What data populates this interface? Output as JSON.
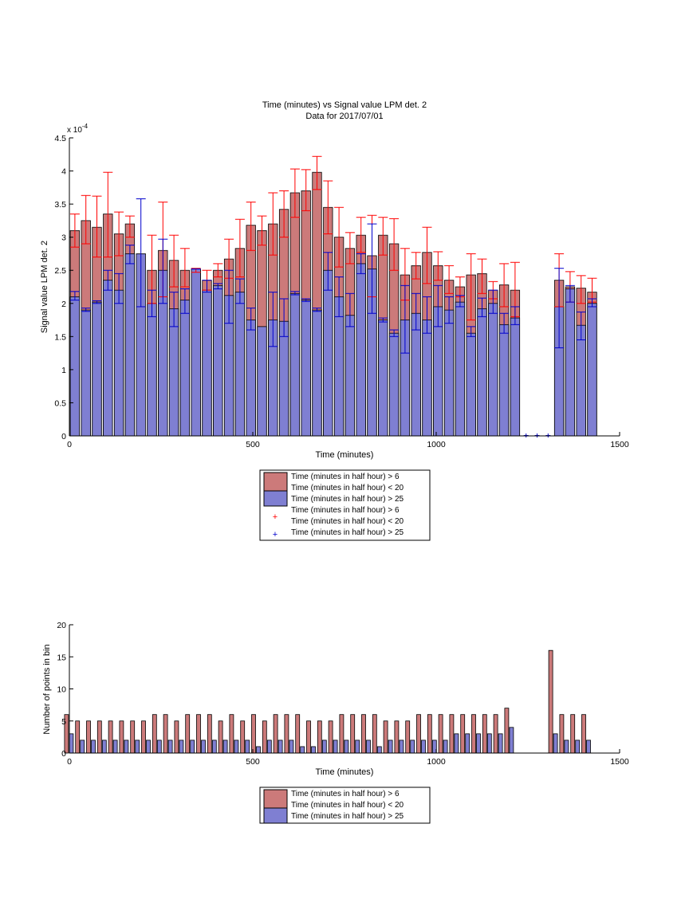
{
  "chart_data": [
    {
      "type": "bar",
      "title": "Time (minutes) vs Signal value LPM det. 2",
      "subtitle": "Data for 2017/07/01",
      "xlabel": "Time (minutes)",
      "ylabel": "Signal value LPM det. 2",
      "y_exponent_label": "x 10",
      "y_exponent_power": "-4",
      "xlim": [
        0,
        1500
      ],
      "ylim": [
        0,
        4.5
      ],
      "xticks": [
        "0",
        "500",
        "1000",
        "1500"
      ],
      "yticks": [
        "0",
        "0.5",
        "1",
        "1.5",
        "2",
        "2.5",
        "3",
        "3.5",
        "4",
        "4.5"
      ],
      "grid": false,
      "legend_position": "below",
      "legend": [
        "Time (minutes in half hour) > 6",
        "Time (minutes in half hour) < 20",
        "Time (minutes in half hour) > 25",
        "Time (minutes in half hour) > 6",
        "Time (minutes in half hour) < 20",
        "Time (minutes in half hour) > 25"
      ],
      "colors": {
        "red_series": "#cc7a7a",
        "blue_series": "#7f7fd2",
        "red_marker": "#ff0000",
        "blue_marker": "#0000cc"
      },
      "x": [
        15,
        45,
        75,
        105,
        135,
        165,
        195,
        225,
        255,
        285,
        315,
        345,
        375,
        405,
        435,
        465,
        495,
        525,
        555,
        585,
        615,
        645,
        675,
        705,
        735,
        765,
        795,
        825,
        855,
        885,
        915,
        945,
        975,
        1005,
        1035,
        1065,
        1095,
        1125,
        1155,
        1185,
        1215,
        1335,
        1365,
        1395,
        1425
      ],
      "series": [
        {
          "values": [
            3.1,
            3.25,
            3.15,
            3.35,
            3.05,
            3.2,
            null,
            2.5,
            2.8,
            2.65,
            2.5,
            2.5,
            2.35,
            2.5,
            2.67,
            2.83,
            3.18,
            3.1,
            3.2,
            3.42,
            3.67,
            3.7,
            3.98,
            3.45,
            3.0,
            2.83,
            3.03,
            2.72,
            3.03,
            2.9,
            2.43,
            2.57,
            2.77,
            2.57,
            2.35,
            2.25,
            2.43,
            2.45,
            2.2,
            2.28,
            2.2,
            2.35,
            2.25,
            2.23,
            2.17
          ],
          "err_low": [
            2.85,
            2.9,
            2.7,
            2.7,
            2.72,
            3.0,
            null,
            2.0,
            2.1,
            2.25,
            2.25,
            2.47,
            2.2,
            2.4,
            2.38,
            2.4,
            2.8,
            2.88,
            2.73,
            3.0,
            3.3,
            3.4,
            3.72,
            3.05,
            2.55,
            2.6,
            2.77,
            2.1,
            2.73,
            2.5,
            2.05,
            2.37,
            2.3,
            2.35,
            2.15,
            2.1,
            1.75,
            2.15,
            2.07,
            1.95,
            1.8,
            1.95,
            2.02,
            2.0,
            2.02
          ],
          "err_high": [
            3.35,
            3.63,
            3.62,
            3.98,
            3.38,
            3.32,
            null,
            3.03,
            3.53,
            3.03,
            2.83,
            2.53,
            2.5,
            2.6,
            2.97,
            3.27,
            3.53,
            3.32,
            3.67,
            3.7,
            4.03,
            4.02,
            4.22,
            3.85,
            3.45,
            3.07,
            3.3,
            3.33,
            3.3,
            3.28,
            2.83,
            2.77,
            3.15,
            2.78,
            2.57,
            2.4,
            2.75,
            2.67,
            2.33,
            2.6,
            2.62,
            2.75,
            2.48,
            2.42,
            2.38
          ]
        },
        {
          "values": [
            2.1,
            1.9,
            2.02,
            2.35,
            2.2,
            2.75,
            2.75,
            2.0,
            2.5,
            1.92,
            2.05,
            2.52,
            2.2,
            2.27,
            2.12,
            2.17,
            1.75,
            1.65,
            1.75,
            1.73,
            2.15,
            2.05,
            1.9,
            2.5,
            2.1,
            1.82,
            2.6,
            2.52,
            1.75,
            1.55,
            1.75,
            1.85,
            1.75,
            1.95,
            1.9,
            2.02,
            1.55,
            1.92,
            2.0,
            1.68,
            1.78,
            1.95,
            2.22,
            1.67,
            2.0
          ],
          "err_low": [
            2.05,
            1.88,
            2.0,
            2.2,
            2.0,
            2.6,
            1.95,
            1.8,
            2.0,
            1.65,
            1.85,
            2.52,
            2.17,
            2.22,
            1.7,
            2.0,
            1.6,
            null,
            1.35,
            1.5,
            2.13,
            2.03,
            1.88,
            2.2,
            1.8,
            1.65,
            2.45,
            1.85,
            1.72,
            1.5,
            1.25,
            1.6,
            1.55,
            1.65,
            1.7,
            1.95,
            1.5,
            1.8,
            1.85,
            1.55,
            1.68,
            1.33,
            2.02,
            1.45,
            1.95
          ],
          "err_high": [
            2.18,
            1.93,
            2.04,
            2.5,
            2.45,
            2.88,
            3.58,
            2.2,
            2.97,
            2.17,
            2.22,
            2.52,
            2.35,
            2.3,
            2.5,
            2.37,
            1.93,
            null,
            2.17,
            2.07,
            2.18,
            2.07,
            1.93,
            2.77,
            2.4,
            2.15,
            2.75,
            3.2,
            1.78,
            1.6,
            2.27,
            2.15,
            2.1,
            2.27,
            2.1,
            2.12,
            1.65,
            2.08,
            2.2,
            1.85,
            1.95,
            2.53,
            2.27,
            1.87,
            2.07
          ]
        }
      ],
      "missing_markers_x": [
        1245,
        1275,
        1305
      ]
    },
    {
      "type": "bar",
      "xlabel": "Time (minutes)",
      "ylabel": "Number of points in bin",
      "xlim": [
        0,
        1500
      ],
      "ylim": [
        0,
        20
      ],
      "xticks": [
        "0",
        "500",
        "1000",
        "1500"
      ],
      "yticks": [
        "0",
        "5",
        "10",
        "15",
        "20"
      ],
      "grid": false,
      "legend_position": "below",
      "legend": [
        "Time (minutes in half hour) > 6",
        "Time (minutes in half hour) < 20",
        "Time (minutes in half hour) > 25"
      ],
      "x": [
        15,
        45,
        75,
        105,
        135,
        165,
        195,
        225,
        255,
        285,
        315,
        345,
        375,
        405,
        435,
        465,
        495,
        525,
        555,
        585,
        615,
        645,
        675,
        705,
        735,
        765,
        795,
        825,
        855,
        885,
        915,
        945,
        975,
        1005,
        1035,
        1065,
        1095,
        1125,
        1155,
        1185,
        1215,
        1335,
        1365,
        1395,
        1425
      ],
      "series": [
        {
          "values": [
            6,
            5,
            5,
            5,
            5,
            5,
            5,
            5,
            6,
            6,
            5,
            6,
            6,
            6,
            5,
            6,
            5,
            6,
            5,
            6,
            6,
            6,
            5,
            5,
            5,
            6,
            6,
            6,
            6,
            5,
            5,
            5,
            6,
            6,
            6,
            6,
            6,
            6,
            6,
            6,
            7,
            16,
            6,
            6,
            6
          ]
        },
        {
          "values": [
            3,
            2,
            2,
            2,
            2,
            2,
            2,
            2,
            2,
            2,
            2,
            2,
            2,
            2,
            2,
            2,
            2,
            1,
            2,
            2,
            2,
            1,
            1,
            2,
            2,
            2,
            2,
            2,
            1,
            2,
            2,
            2,
            2,
            2,
            2,
            3,
            3,
            3,
            3,
            3,
            4,
            3,
            2,
            2,
            2
          ]
        }
      ]
    }
  ]
}
